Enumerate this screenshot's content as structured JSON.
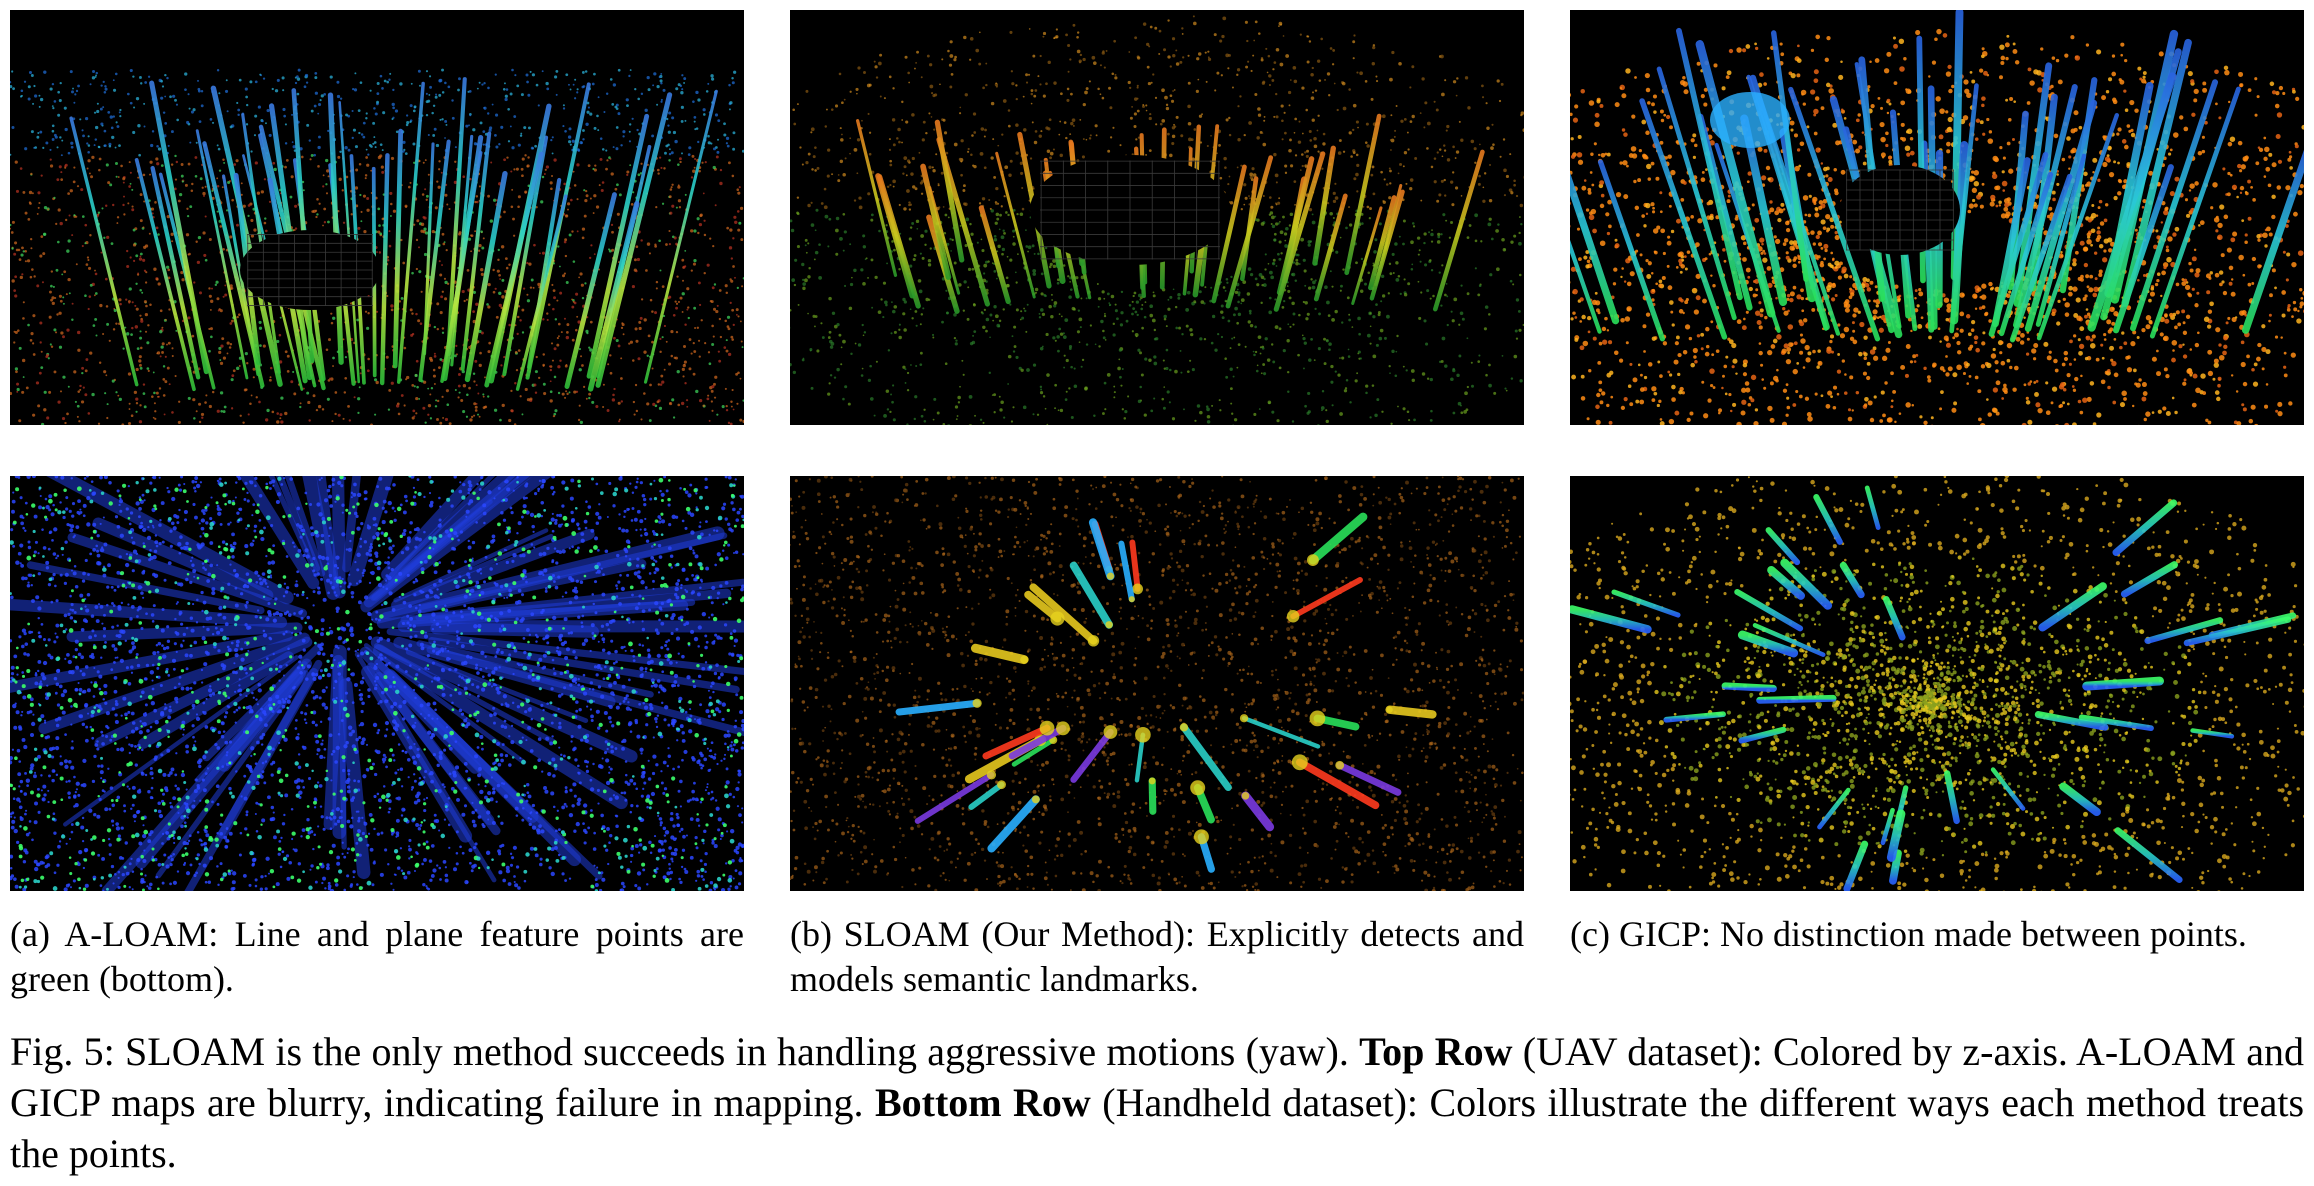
{
  "subcaptions": [
    {
      "label": "(a)",
      "text": "A-LOAM: Line and plane feature points are green (bottom)."
    },
    {
      "label": "(b)",
      "text": "SLOAM (Our Method): Explicitly detects and models semantic landmarks."
    },
    {
      "label": "(c)",
      "text": "GICP: No distinction made between points."
    }
  ],
  "figure_caption": {
    "prefix": "Fig. 5: SLOAM is the only method succeeds in handling aggressive motions (yaw).",
    "top_row_label": "Top Row",
    "top_row_text": "(UAV dataset): Colored by z-axis. A-LOAM and GICP maps are blurry, indicating failure in mapping.",
    "bottom_row_label": "Bottom Row",
    "bottom_row_text": "(Handheld dataset): Colors illustrate the different ways each method treats the points."
  },
  "colors": {
    "panel_background": "#000000",
    "aloam_bottom_blue": "#1a3cff",
    "feature_green": "#3cff6a",
    "sloam_orange": "#c8781e",
    "gicp_yellow": "#e6c81e",
    "gicp_orange": "#ff8c14"
  }
}
